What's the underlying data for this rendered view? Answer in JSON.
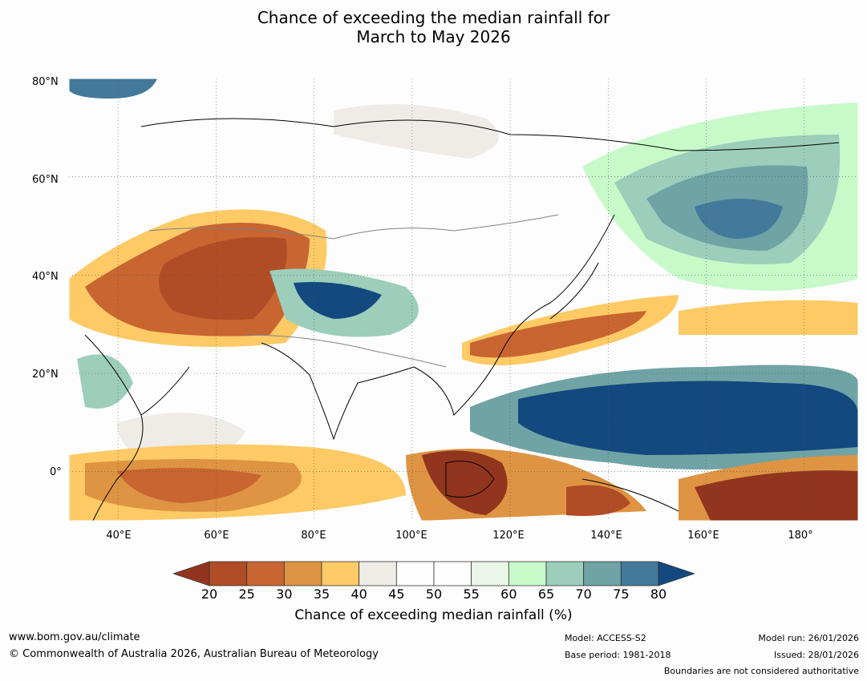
{
  "title": {
    "line1": "Chance of exceeding the median rainfall for",
    "line2": "March to May 2026"
  },
  "map": {
    "lat_labels": [
      "80°N",
      "60°N",
      "40°N",
      "20°N",
      "0°"
    ],
    "lon_labels": [
      "40°E",
      "60°E",
      "80°E",
      "100°E",
      "120°E",
      "140°E",
      "160°E",
      "180°"
    ],
    "extent": {
      "lon_min": 30,
      "lon_max": 191,
      "lat_min": -10,
      "lat_max": 80
    },
    "grid_lines": "dotted",
    "regions": [
      {
        "name": "central-asia-dry",
        "color": "#b24d23"
      },
      {
        "name": "tibet-wet",
        "color": "#13497f"
      },
      {
        "name": "west-pacific-wet",
        "color": "#13497f"
      },
      {
        "name": "equatorial-pacific-dry",
        "color": "#92351e"
      },
      {
        "name": "east-china-dry",
        "color": "#c4622e"
      },
      {
        "name": "north-pacific-wet",
        "color": "#6fa3a5"
      },
      {
        "name": "indian-ocean-dry",
        "color": "#e0943f"
      }
    ]
  },
  "colorbar": {
    "label": "Chance of exceeding median rainfall (%)",
    "ticks": [
      "20",
      "25",
      "30",
      "35",
      "40",
      "45",
      "50",
      "55",
      "60",
      "65",
      "70",
      "75",
      "80"
    ],
    "colors": [
      "#92351e",
      "#b04c26",
      "#c96531",
      "#de9442",
      "#fdca66",
      "#efece7",
      "#fdfdfd",
      "#fdfdfd",
      "#eaf7e8",
      "#c8fac9",
      "#9ccebb",
      "#6fa3a5",
      "#43799a",
      "#13497f"
    ]
  },
  "footer": {
    "website": "www.bom.gov.au/climate",
    "copyright": "© Commonwealth of Australia 2026, Australian Bureau of Meteorology",
    "model": "Model: ACCESS-S2",
    "base_period": "Base period: 1981-2018",
    "model_run": "Model run: 26/01/2026",
    "issued": "Issued: 28/01/2026",
    "disclaimer": "Boundaries are not considered authoritative"
  }
}
